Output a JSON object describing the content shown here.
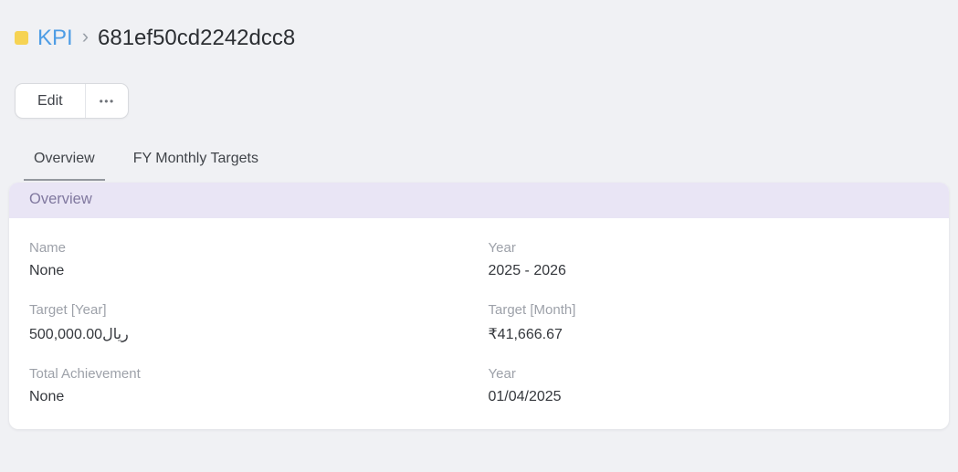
{
  "colors": {
    "page_bg": "#f0f1f4",
    "card_bg": "#ffffff",
    "section_header_bg": "#e9e5f5",
    "section_header_text": "#80789f",
    "breadcrumb_link_blue": "#4e9de5",
    "doctype_icon_yellow": "#f6d353",
    "title_text": "#2c2f33",
    "field_label_gray": "#9da1a9",
    "field_value_dark": "#35383d",
    "tab_underline_gray": "#94989e"
  },
  "breadcrumb": {
    "root_label": "KPI",
    "separator": "›",
    "current_title": "681ef50cd2242dcc8"
  },
  "toolbar": {
    "edit_label": "Edit",
    "more_label": "•••"
  },
  "tabs": [
    {
      "label": "Overview",
      "active": true
    },
    {
      "label": "FY Monthly Targets",
      "active": false
    }
  ],
  "section": {
    "title": "Overview"
  },
  "fields": [
    {
      "label": "Name",
      "value": "None"
    },
    {
      "label": "Year",
      "value": "2025 - 2026"
    },
    {
      "label": "Target [Year]",
      "value": "500,000.00ريال"
    },
    {
      "label": "Target [Month]",
      "value": "₹41,666.67"
    },
    {
      "label": "Total Achievement",
      "value": "None"
    },
    {
      "label": "Year",
      "value": "01/04/2025"
    }
  ]
}
